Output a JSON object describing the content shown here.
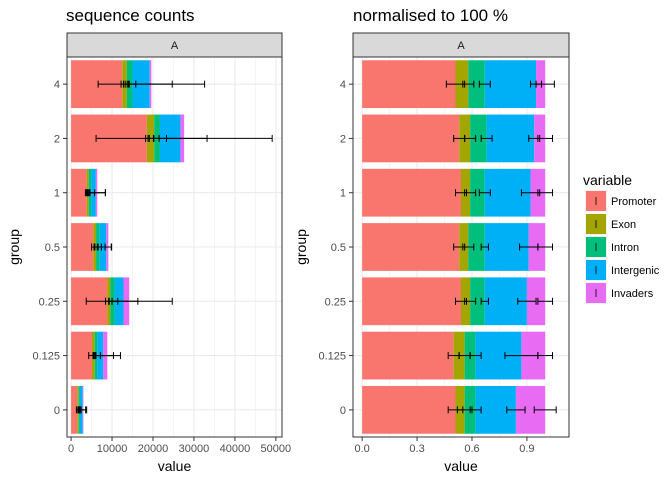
{
  "chart_data": [
    {
      "type": "bar",
      "stacked": true,
      "orientation": "horizontal",
      "title": "sequence counts",
      "facet_label": "A",
      "xlabel": "value",
      "ylabel": "group",
      "categories": [
        "0",
        "0.125",
        "0.25",
        "0.5",
        "1",
        "2",
        "4"
      ],
      "xlim": [
        -1000,
        51500
      ],
      "xticks": [
        0,
        10000,
        20000,
        30000,
        40000,
        50000
      ],
      "xtick_labels": [
        "0",
        "10000",
        "20000",
        "30000",
        "40000",
        "50000"
      ],
      "grid": true,
      "series": [
        {
          "name": "Promoter",
          "values": [
            1500,
            5100,
            8800,
            5400,
            3800,
            18500,
            12500
          ]
        },
        {
          "name": "Exon",
          "values": [
            350,
            650,
            800,
            700,
            500,
            1800,
            1100
          ]
        },
        {
          "name": "Intron",
          "values": [
            300,
            600,
            1100,
            800,
            650,
            1400,
            1400
          ]
        },
        {
          "name": "Intergenic",
          "values": [
            700,
            1500,
            2100,
            1700,
            1100,
            5000,
            4200
          ]
        },
        {
          "name": "Invaders",
          "values": [
            150,
            1000,
            1400,
            500,
            350,
            900,
            400
          ]
        }
      ],
      "error_bars": {
        "Promoter": [
          [
            1500,
            200
          ],
          [
            5100,
            800
          ],
          [
            8800,
            400
          ],
          [
            5400,
            400
          ],
          [
            3800,
            300
          ],
          [
            18500,
            300
          ],
          [
            12500,
            300
          ]
        ],
        "Exon": [
          [
            1850,
            200
          ],
          [
            5750,
            300
          ],
          [
            9600,
            400
          ],
          [
            6100,
            500
          ],
          [
            4300,
            300
          ],
          [
            20300,
            1200
          ],
          [
            13600,
            400
          ]
        ],
        "Intron": [
          [
            2150,
            300
          ],
          [
            6350,
            800
          ],
          [
            10700,
            700
          ],
          [
            6900,
            500
          ],
          [
            4950,
            800
          ],
          [
            21700,
            1600
          ],
          [
            15000,
            800
          ]
        ],
        "Intergenic": [
          [
            2850,
            700
          ],
          [
            7850,
            2500
          ],
          [
            12800,
            3500
          ],
          [
            8600,
            1200
          ],
          [
            6050,
            2300
          ],
          [
            26700,
            6500
          ],
          [
            19200,
            5500
          ]
        ],
        "Invaders": [
          [
            3000,
            800
          ],
          [
            8850,
            3200
          ],
          [
            14200,
            10500
          ],
          [
            9100,
            800
          ],
          [
            6400,
            2000
          ],
          [
            27600,
            21500
          ],
          [
            19600,
            13000
          ]
        ]
      }
    },
    {
      "type": "bar",
      "stacked": true,
      "orientation": "horizontal",
      "title": "normalised to 100 %",
      "facet_label": "A",
      "xlabel": "value",
      "ylabel": "group",
      "categories": [
        "0",
        "0.125",
        "0.25",
        "0.5",
        "1",
        "2",
        "4"
      ],
      "xlim": [
        -0.05,
        1.13
      ],
      "xticks": [
        0,
        0.3,
        0.6,
        0.9
      ],
      "xtick_labels": [
        "0.0",
        "0.3",
        "0.6",
        "0.9"
      ],
      "grid": true,
      "legend": {
        "title": "variable",
        "position": "right"
      },
      "series": [
        {
          "name": "Promoter",
          "values": [
            0.51,
            0.5,
            0.54,
            0.53,
            0.54,
            0.53,
            0.51
          ]
        },
        {
          "name": "Exon",
          "values": [
            0.05,
            0.06,
            0.05,
            0.05,
            0.05,
            0.06,
            0.07
          ]
        },
        {
          "name": "Intron",
          "values": [
            0.06,
            0.06,
            0.08,
            0.09,
            0.08,
            0.09,
            0.09
          ]
        },
        {
          "name": "Intergenic",
          "values": [
            0.22,
            0.25,
            0.23,
            0.24,
            0.25,
            0.26,
            0.28
          ]
        },
        {
          "name": "Invaders",
          "values": [
            0.16,
            0.13,
            0.1,
            0.09,
            0.08,
            0.06,
            0.05
          ]
        }
      ],
      "error_bars": {
        "Promoter": [
          [
            0.51,
            0.04
          ],
          [
            0.5,
            0.03
          ],
          [
            0.54,
            0.03
          ],
          [
            0.53,
            0.03
          ],
          [
            0.54,
            0.03
          ],
          [
            0.53,
            0.03
          ],
          [
            0.51,
            0.05
          ]
        ],
        "Exon": [
          [
            0.56,
            0.04
          ],
          [
            0.56,
            0.03
          ],
          [
            0.59,
            0.03
          ],
          [
            0.58,
            0.03
          ],
          [
            0.59,
            0.03
          ],
          [
            0.59,
            0.03
          ],
          [
            0.58,
            0.03
          ]
        ],
        "Intron": [
          [
            0.62,
            0.03
          ],
          [
            0.62,
            0.03
          ],
          [
            0.67,
            0.02
          ],
          [
            0.67,
            0.02
          ],
          [
            0.67,
            0.03
          ],
          [
            0.68,
            0.03
          ],
          [
            0.67,
            0.03
          ]
        ],
        "Intergenic": [
          [
            0.84,
            0.05
          ],
          [
            0.87,
            0.09
          ],
          [
            0.9,
            0.05
          ],
          [
            0.91,
            0.05
          ],
          [
            0.92,
            0.05
          ],
          [
            0.94,
            0.03
          ],
          [
            0.95,
            0.03
          ]
        ],
        "Invaders": [
          [
            1.0,
            0.06
          ],
          [
            1.0,
            0.04
          ],
          [
            1.0,
            0.04
          ],
          [
            1.0,
            0.04
          ],
          [
            1.0,
            0.04
          ],
          [
            1.0,
            0.04
          ],
          [
            1.0,
            0.05
          ]
        ]
      }
    }
  ],
  "colors": {
    "Promoter": "#F8766D",
    "Exon": "#A3A500",
    "Intron": "#00BF7D",
    "Intergenic": "#00B0F6",
    "Invaders": "#E76BF3",
    "strip": "#D9D9D9",
    "grid": "#EBEBEB"
  }
}
